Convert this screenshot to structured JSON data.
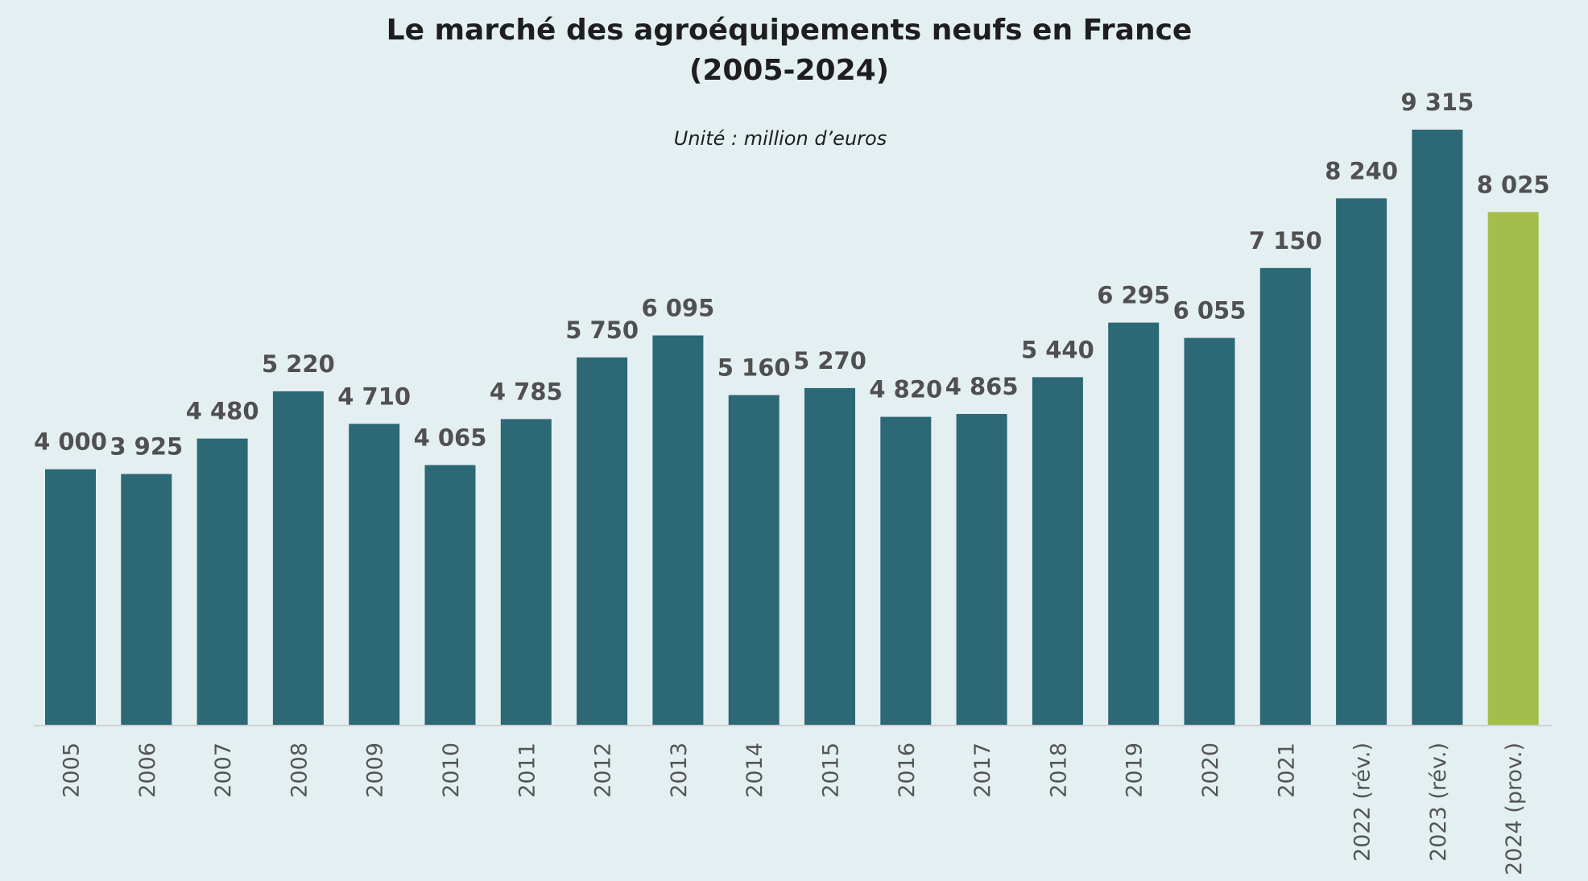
{
  "chart_data": {
    "type": "bar",
    "title_line1": "Le marché des agroéquipements neufs en France",
    "title_line2": "(2005-2024)",
    "subtitle": "Unité : million d’euros",
    "xlabel": "",
    "ylabel": "",
    "ylim": [
      0,
      9315
    ],
    "grid": false,
    "legend": "none",
    "categories": [
      "2005",
      "2006",
      "2007",
      "2008",
      "2009",
      "2010",
      "2011",
      "2012",
      "2013",
      "2014",
      "2015",
      "2016",
      "2017",
      "2018",
      "2019",
      "2020",
      "2021",
      "2022 (rév.)",
      "2023 (rév.)",
      "2024 (prov.)"
    ],
    "values": [
      4000,
      3925,
      4480,
      5220,
      4710,
      4065,
      4785,
      5750,
      6095,
      5160,
      5270,
      4820,
      4865,
      5440,
      6295,
      6055,
      7150,
      8240,
      9315,
      8025
    ],
    "value_labels": [
      "4 000",
      "3 925",
      "4 480",
      "5 220",
      "4 710",
      "4 065",
      "4 785",
      "5 750",
      "6 095",
      "5 160",
      "5 270",
      "4 820",
      "4 865",
      "5 440",
      "6 295",
      "6 055",
      "7 150",
      "8 240",
      "9 315",
      "8 025"
    ],
    "colors": {
      "bar": "#2d6876",
      "highlight": "#a5bd4b",
      "axis": "#d0d0d0"
    },
    "highlight_index": 19
  }
}
